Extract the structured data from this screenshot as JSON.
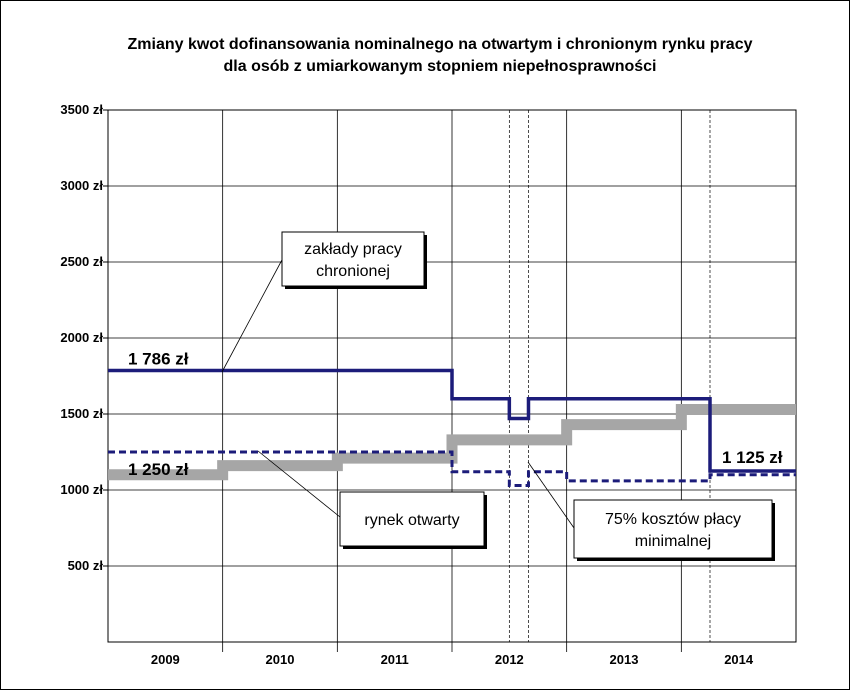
{
  "chart_data": {
    "type": "line",
    "title_line1": "Zmiany kwot dofinansowania nominalnego na otwartym i chronionym rynku pracy",
    "title_line2": "dla osób z umiarkowanym stopniem niepełnosprawności",
    "ylim": [
      0,
      3500
    ],
    "yticks": [
      {
        "value": 500,
        "label": "500 zł"
      },
      {
        "value": 1000,
        "label": "1000 zł"
      },
      {
        "value": 1500,
        "label": "1500 zł"
      },
      {
        "value": 2000,
        "label": "2000 zł"
      },
      {
        "value": 2500,
        "label": "2500 zł"
      },
      {
        "value": 3000,
        "label": "3000 zł"
      },
      {
        "value": 3500,
        "label": "3500 zł"
      }
    ],
    "xlim": [
      2009,
      2015
    ],
    "categories": [
      "2009",
      "2010",
      "2011",
      "2012",
      "2013",
      "2014"
    ],
    "grid": true,
    "dashed_gridlines_x": [
      2012.5,
      2012.667,
      2014.25
    ],
    "series": [
      {
        "key": "chroniony",
        "name": "zakłady pracy chronionej",
        "color": "#1c1c7a",
        "style": "solid",
        "steps": [
          [
            2009,
            1786
          ],
          [
            2012,
            1600
          ],
          [
            2012.5,
            1470
          ],
          [
            2012.667,
            1600
          ],
          [
            2014.25,
            1125
          ],
          [
            2015,
            1125
          ]
        ]
      },
      {
        "key": "otwarty",
        "name": "rynek otwarty",
        "color": "#1c1c7a",
        "style": "dashed",
        "steps": [
          [
            2009,
            1250
          ],
          [
            2012,
            1120
          ],
          [
            2012.5,
            1030
          ],
          [
            2012.667,
            1120
          ],
          [
            2013,
            1060
          ],
          [
            2014.25,
            1100
          ],
          [
            2015,
            1100
          ]
        ]
      },
      {
        "key": "placa",
        "name": "75% kosztów płacy minimalnej",
        "color": "#a6a6a6",
        "style": "solid-thick",
        "steps": [
          [
            2009,
            1100
          ],
          [
            2010,
            1160
          ],
          [
            2011,
            1210
          ],
          [
            2012,
            1330
          ],
          [
            2013,
            1430
          ],
          [
            2014,
            1530
          ],
          [
            2015,
            1530
          ]
        ]
      }
    ],
    "callouts": [
      {
        "key": "chroniony",
        "line1": "zakłady pracy",
        "line2": "chronionej"
      },
      {
        "key": "otwarty",
        "line1": "rynek otwarty",
        "line2": ""
      },
      {
        "key": "placa",
        "line1": "75% kosztów płacy",
        "line2": "minimalnej"
      }
    ],
    "data_labels": [
      {
        "key": "start_chroniony",
        "text": "1 786 zł",
        "value": 1786
      },
      {
        "key": "start_otwarty",
        "text": "1 250 zł",
        "value": 1250
      },
      {
        "key": "end_chroniony",
        "text": "1 125 zł",
        "value": 1125
      }
    ]
  }
}
